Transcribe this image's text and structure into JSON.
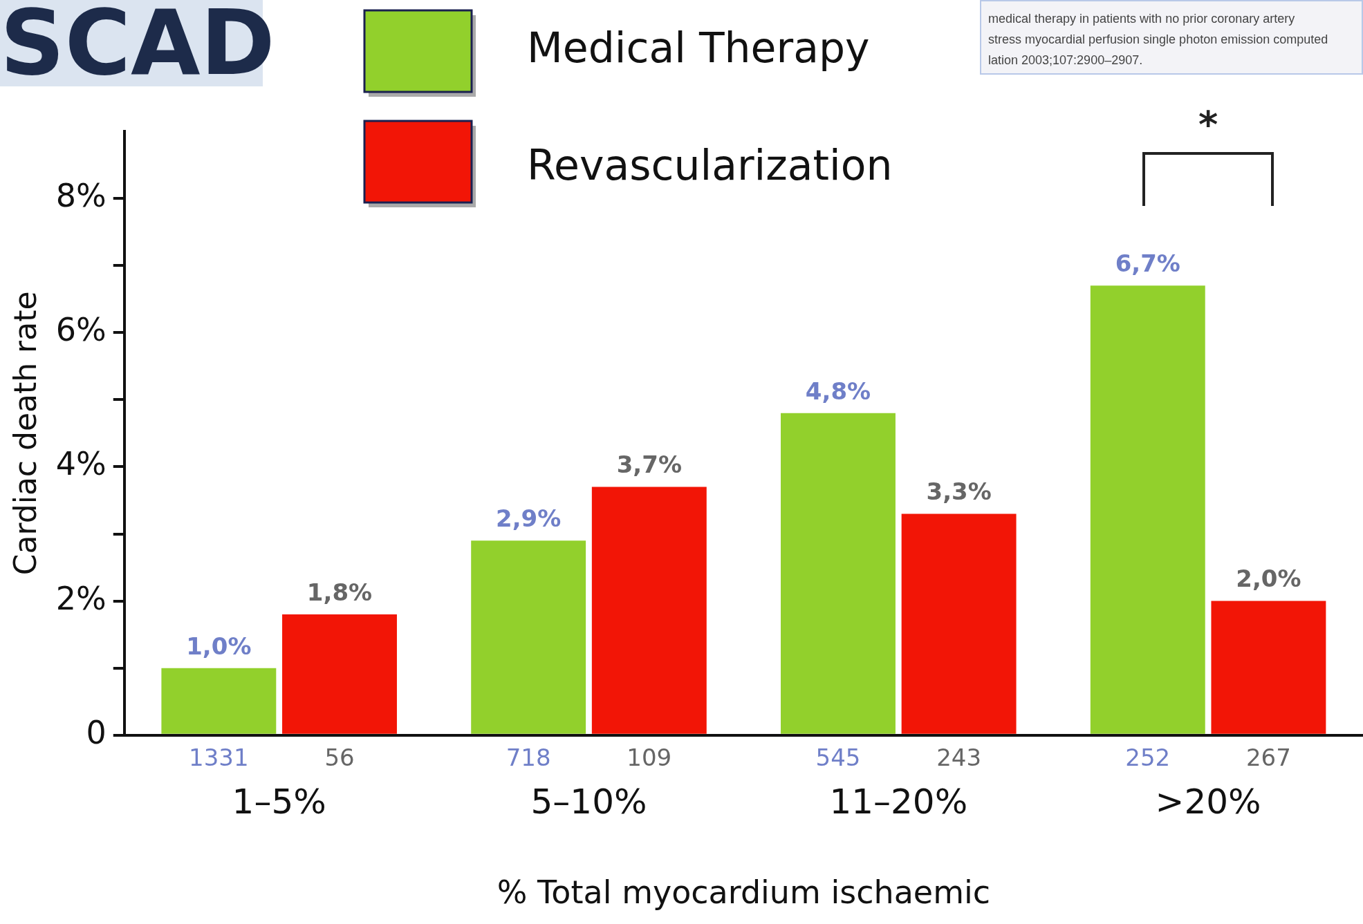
{
  "chart_data": {
    "type": "bar",
    "title": "SCAD",
    "xlabel": "% Total myocardium ischaemic",
    "ylabel": "Cardiac death rate",
    "categories": [
      "1–5%",
      "5–10%",
      "11–20%",
      ">20%"
    ],
    "series": [
      {
        "name": "Medical Therapy",
        "color": "#92d02c",
        "values": [
          1.0,
          2.9,
          4.8,
          6.7
        ],
        "value_labels": [
          "1,0%",
          "2,9%",
          "4,8%",
          "6,7%"
        ]
      },
      {
        "name": "Revascularization",
        "color": "#f21506",
        "values": [
          1.8,
          3.7,
          3.3,
          2.0
        ],
        "value_labels": [
          "1,8%",
          "3,7%",
          "3,3%",
          "2,0%"
        ]
      }
    ],
    "ylim": [
      0,
      9
    ],
    "yticks": [
      {
        "value": 0,
        "label": "0"
      },
      {
        "value": 1,
        "label": null
      },
      {
        "value": 2,
        "label": "2%"
      },
      {
        "value": 3,
        "label": null
      },
      {
        "value": 4,
        "label": "4%"
      },
      {
        "value": 5,
        "label": null
      },
      {
        "value": 6,
        "label": "6%"
      },
      {
        "value": 7,
        "label": null
      },
      {
        "value": 8,
        "label": "8%"
      }
    ],
    "grid": false,
    "legend": "top",
    "annotations": [
      "medical therapy in patients with no prior coronary artery",
      "stress myocardial perfusion single photon emission computed",
      "lation 2003;107:2900–2907.",
      "*",
      "1331",
      "56",
      "718",
      "109",
      "545",
      "243",
      "252",
      "267"
    ]
  }
}
